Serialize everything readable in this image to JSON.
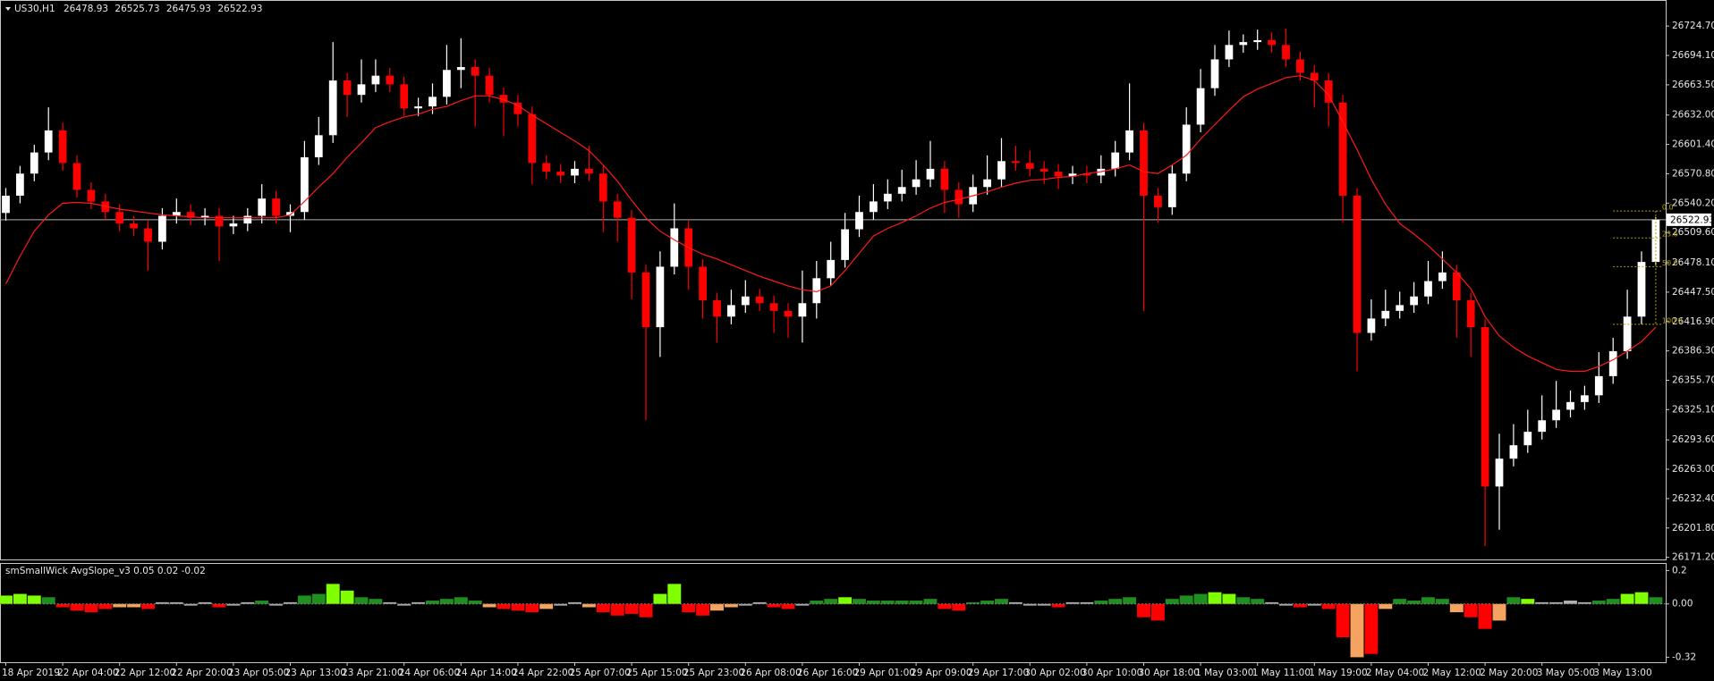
{
  "chart_data": {
    "type": "candlestick",
    "symbol": "US30,H1",
    "categories": [
      "18 Apr 2019",
      null,
      null,
      null,
      "22 Apr 04:00",
      null,
      null,
      null,
      "22 Apr 12:00",
      null,
      null,
      null,
      "22 Apr 20:00",
      null,
      null,
      null,
      "23 Apr 05:00",
      null,
      null,
      null,
      "23 Apr 13:00",
      null,
      null,
      null,
      "23 Apr 21:00",
      null,
      null,
      null,
      "24 Apr 06:00",
      null,
      null,
      null,
      "24 Apr 14:00",
      null,
      null,
      null,
      "24 Apr 22:00",
      null,
      null,
      null,
      "25 Apr 07:00",
      null,
      null,
      null,
      "25 Apr 15:00",
      null,
      null,
      null,
      "25 Apr 23:00",
      null,
      null,
      null,
      "26 Apr 08:00",
      null,
      null,
      null,
      "26 Apr 16:00",
      null,
      null,
      null,
      "29 Apr 01:00",
      null,
      null,
      null,
      "29 Apr 09:00",
      null,
      null,
      null,
      "29 Apr 17:00",
      null,
      null,
      null,
      "30 Apr 02:00",
      null,
      null,
      null,
      "30 Apr 10:00",
      null,
      null,
      null,
      "30 Apr 18:00",
      null,
      null,
      null,
      "1 May 03:00",
      null,
      null,
      null,
      "1 May 11:00",
      null,
      null,
      null,
      "1 May 19:00",
      null,
      null,
      null,
      "2 May 04:00",
      null,
      null,
      null,
      "2 May 12:00",
      null,
      null,
      null,
      "2 May 20:00",
      null,
      null,
      null,
      "3 May 05:00",
      null,
      null,
      null,
      "3 May 13:00",
      null,
      null,
      null,
      null
    ],
    "open": [
      26530,
      26548,
      26571,
      26593,
      26616,
      26582,
      26554,
      26542,
      26531,
      26519,
      26514,
      26500,
      26527,
      26531,
      26525,
      26527,
      26516,
      26519,
      26527,
      26545,
      26527,
      26531,
      26588,
      26611,
      26668,
      26653,
      26664,
      26673,
      26664,
      26639,
      26641,
      26651,
      26679,
      26682,
      26673,
      26653,
      26645,
      26633,
      26582,
      26573,
      26569,
      26576,
      26571,
      26542,
      26525,
      26468,
      26411,
      26474,
      26514,
      26474,
      26439,
      26422,
      26434,
      26443,
      26436,
      26428,
      26422,
      26436,
      26462,
      26481,
      26513,
      26531,
      26542,
      26550,
      26557,
      26565,
      26576,
      26554,
      26539,
      26557,
      26565,
      26584,
      26582,
      26576,
      26573,
      26568,
      26571,
      26569,
      26576,
      26593,
      26616,
      26548,
      26536,
      26571,
      26622,
      26660,
      26690,
      26705,
      26708,
      26710,
      26705,
      26690,
      26676,
      26668,
      26645,
      26548,
      26405,
      26420,
      26428,
      26434,
      26443,
      26459,
      26468,
      26439,
      26411,
      26245,
      26274,
      26288,
      26302,
      26314,
      26325,
      26333,
      26340,
      26360,
      26386,
      26422,
      26478.93
    ],
    "high": [
      26556,
      26579,
      26601,
      26640,
      26624,
      26590,
      26562,
      26550,
      26539,
      26527,
      26522,
      26535,
      26545,
      26539,
      26535,
      26535,
      26527,
      26535,
      26560,
      26553,
      26539,
      26605,
      26630,
      26708,
      26676,
      26690,
      26690,
      26681,
      26672,
      26650,
      26665,
      26705,
      26712,
      26690,
      26681,
      26661,
      26653,
      26641,
      26590,
      26581,
      26584,
      26600,
      26579,
      26550,
      26533,
      26476,
      26490,
      26540,
      26522,
      26482,
      26447,
      26450,
      26460,
      26451,
      26444,
      26436,
      26470,
      26480,
      26500,
      26530,
      26548,
      26560,
      26565,
      26575,
      26585,
      26605,
      26584,
      26562,
      26570,
      26590,
      26608,
      26600,
      26595,
      26584,
      26581,
      26579,
      26579,
      26590,
      26605,
      26665,
      26624,
      26556,
      26580,
      26640,
      26680,
      26705,
      26720,
      26716,
      26721,
      26718,
      26722,
      26698,
      26684,
      26676,
      26653,
      26556,
      26440,
      26450,
      26448,
      26458,
      26480,
      26490,
      26476,
      26447,
      26419,
      26300,
      26310,
      26325,
      26340,
      26355,
      26345,
      26350,
      26385,
      26400,
      26450,
      26490,
      26525.73
    ],
    "low": [
      26522,
      26540,
      26563,
      26585,
      26574,
      26546,
      26534,
      26523,
      26511,
      26506,
      26470,
      26492,
      26519,
      26517,
      26517,
      26480,
      26508,
      26511,
      26519,
      26519,
      26510,
      26523,
      26580,
      26603,
      26630,
      26645,
      26656,
      26656,
      26631,
      26631,
      26633,
      26643,
      26660,
      26620,
      26645,
      26610,
      26620,
      26560,
      26565,
      26561,
      26561,
      26563,
      26510,
      26500,
      26440,
      26314,
      26380,
      26466,
      26450,
      26420,
      26395,
      26414,
      26426,
      26428,
      26405,
      26400,
      26395,
      26420,
      26454,
      26473,
      26505,
      26523,
      26534,
      26542,
      26549,
      26557,
      26530,
      26525,
      26531,
      26549,
      26557,
      26574,
      26568,
      26560,
      26555,
      26560,
      26561,
      26561,
      26568,
      26585,
      26428,
      26520,
      26528,
      26563,
      26614,
      26652,
      26682,
      26697,
      26700,
      26697,
      26682,
      26668,
      26640,
      26620,
      26520,
      26365,
      26397,
      26412,
      26420,
      26426,
      26435,
      26451,
      26400,
      26380,
      26183,
      26200,
      26266,
      26280,
      26294,
      26306,
      26317,
      26325,
      26332,
      26352,
      26378,
      26414,
      26475.93
    ],
    "close": [
      26548,
      26571,
      26593,
      26616,
      26582,
      26554,
      26542,
      26531,
      26519,
      26514,
      26500,
      26527,
      26531,
      26525,
      26527,
      26516,
      26519,
      26527,
      26545,
      26527,
      26531,
      26588,
      26611,
      26668,
      26653,
      26664,
      26673,
      26664,
      26639,
      26641,
      26651,
      26679,
      26682,
      26673,
      26653,
      26645,
      26633,
      26582,
      26573,
      26569,
      26576,
      26571,
      26542,
      26525,
      26468,
      26411,
      26474,
      26514,
      26474,
      26439,
      26422,
      26434,
      26443,
      26436,
      26428,
      26422,
      26436,
      26462,
      26481,
      26513,
      26531,
      26542,
      26550,
      26557,
      26565,
      26576,
      26554,
      26539,
      26557,
      26565,
      26584,
      26582,
      26576,
      26573,
      26568,
      26571,
      26569,
      26576,
      26593,
      26616,
      26548,
      26536,
      26571,
      26622,
      26660,
      26690,
      26705,
      26708,
      26710,
      26705,
      26690,
      26676,
      26668,
      26645,
      26548,
      26405,
      26420,
      26428,
      26434,
      26443,
      26459,
      26468,
      26439,
      26411,
      26245,
      26274,
      26288,
      26302,
      26314,
      26325,
      26333,
      26340,
      26360,
      26386,
      26422,
      26478.93,
      26522.93
    ],
    "up_color": "#ffffff",
    "down_color": "#ff0000",
    "ma": {
      "color": "#ff1a1a",
      "values": [
        26456,
        26485,
        26511,
        26528,
        26540,
        26541,
        26540,
        26537,
        26534,
        26532,
        26530,
        26528,
        26527,
        26526,
        26525,
        26525,
        26525,
        26525,
        26525,
        26525,
        26528,
        26542,
        26557,
        26571,
        26588,
        26603,
        26619,
        26625,
        26630,
        26633,
        26638,
        26641,
        26647,
        26652,
        26652,
        26648,
        26642,
        26632,
        26623,
        26614,
        26605,
        26595,
        26580,
        26563,
        26543,
        26525,
        26511,
        26502,
        26494,
        26487,
        26482,
        26476,
        26470,
        26464,
        26459,
        26454,
        26450,
        26448,
        26454,
        26470,
        26488,
        26506,
        26514,
        26520,
        26527,
        26535,
        26541,
        26544,
        26548,
        26552,
        26557,
        26561,
        26564,
        26565,
        26567,
        26568,
        26571,
        26573,
        26576,
        26580,
        26573,
        26571,
        26580,
        26590,
        26607,
        26622,
        26637,
        26651,
        26659,
        26665,
        26671,
        26673,
        26668,
        26653,
        26625,
        26596,
        26565,
        26539,
        26519,
        26508,
        26496,
        26482,
        26468,
        26451,
        26422,
        26402,
        26390,
        26381,
        26374,
        26367,
        26365,
        26365,
        26370,
        26377,
        26386,
        26396,
        26411
      ]
    },
    "ylim": [
      26169,
      26750
    ],
    "yticks": [
      {
        "value": 26724.7,
        "label": "26724.70"
      },
      {
        "value": 26694.1,
        "label": "26694.10"
      },
      {
        "value": 26663.5,
        "label": "26663.50"
      },
      {
        "value": 26632,
        "label": "26632.00"
      },
      {
        "value": 26601.4,
        "label": "26601.40"
      },
      {
        "value": 26570.8,
        "label": "26570.80"
      },
      {
        "value": 26540.2,
        "label": "26540.20"
      },
      {
        "value": 26509.6,
        "label": "26509.60"
      },
      {
        "value": 26478.1,
        "label": "26478.10"
      },
      {
        "value": 26447.5,
        "label": "26447.50"
      },
      {
        "value": 26416.9,
        "label": "26416.90"
      },
      {
        "value": 26386.3,
        "label": "26386.30"
      },
      {
        "value": 26355.7,
        "label": "26355.70"
      },
      {
        "value": 26325.1,
        "label": "26325.10"
      },
      {
        "value": 26293.6,
        "label": "26293.60"
      },
      {
        "value": 26263,
        "label": "26263.00"
      },
      {
        "value": 26232.4,
        "label": "26232.40"
      },
      {
        "value": 26201.8,
        "label": "26201.80"
      },
      {
        "value": 26171.2,
        "label": "26171.20"
      }
    ],
    "price_line_color": "#b0b0b0",
    "fib_color": "#b8a200",
    "fib_levels": [
      {
        "label": "0.0",
        "price": 26532
      },
      {
        "label": "23.6",
        "price": 26504
      },
      {
        "label": "50.0",
        "price": 26474
      },
      {
        "label": "100.0",
        "price": 26414
      }
    ],
    "indicator": {
      "type": "histogram",
      "title": "smSmallWick AvgSlope_v3 0.05 0.02 -0.02",
      "values": [
        0.05,
        0.06,
        0.05,
        0.04,
        -0.02,
        -0.04,
        -0.05,
        -0.03,
        -0.02,
        -0.02,
        -0.03,
        0.01,
        0.01,
        -0.01,
        0.01,
        -0.02,
        -0.01,
        0.01,
        0.02,
        -0.01,
        0.01,
        0.05,
        0.06,
        0.12,
        0.08,
        0.04,
        0.03,
        0.01,
        -0.01,
        0.01,
        0.02,
        0.03,
        0.04,
        0.02,
        -0.02,
        -0.03,
        -0.04,
        -0.05,
        -0.03,
        -0.01,
        0.01,
        -0.02,
        -0.05,
        -0.07,
        -0.06,
        -0.08,
        0.06,
        0.12,
        -0.05,
        -0.07,
        -0.04,
        -0.02,
        -0.01,
        0.01,
        -0.02,
        -0.03,
        -0.01,
        0.02,
        0.03,
        0.04,
        0.03,
        0.02,
        0.02,
        0.02,
        0.02,
        0.03,
        -0.03,
        -0.04,
        0.01,
        0.02,
        0.03,
        0.01,
        -0.01,
        -0.01,
        -0.02,
        0.01,
        0.01,
        0.02,
        0.03,
        0.04,
        -0.08,
        -0.1,
        0.03,
        0.05,
        0.06,
        0.07,
        0.06,
        0.04,
        0.03,
        0.01,
        -0.01,
        -0.02,
        -0.01,
        -0.03,
        -0.2,
        -0.32,
        -0.3,
        -0.03,
        0.03,
        0.02,
        0.04,
        0.03,
        -0.05,
        -0.08,
        -0.15,
        -0.1,
        0.04,
        0.03,
        0.01,
        0.01,
        0.02,
        0.01,
        0.02,
        0.03,
        0.06,
        0.07,
        0.04
      ],
      "colors": [
        "#7fff00",
        "#7fff00",
        "#7fff00",
        "#1f8f1f",
        "#ff0000",
        "#ff0000",
        "#ff0000",
        "#ff0000",
        "#f4a460",
        "#f4a460",
        "#ff0000",
        "#b0b0b0",
        "#b0b0b0",
        "#b0b0b0",
        "#b0b0b0",
        "#ff0000",
        "#b0b0b0",
        "#b0b0b0",
        "#1f8f1f",
        "#b0b0b0",
        "#b0b0b0",
        "#1f8f1f",
        "#1f8f1f",
        "#7fff00",
        "#7fff00",
        "#1f8f1f",
        "#1f8f1f",
        "#b0b0b0",
        "#b0b0b0",
        "#b0b0b0",
        "#1f8f1f",
        "#1f8f1f",
        "#1f8f1f",
        "#1f8f1f",
        "#f4a460",
        "#ff0000",
        "#ff0000",
        "#ff0000",
        "#f4a460",
        "#b0b0b0",
        "#b0b0b0",
        "#f4a460",
        "#ff0000",
        "#ff0000",
        "#ff0000",
        "#ff0000",
        "#7fff00",
        "#7fff00",
        "#ff0000",
        "#ff0000",
        "#f4a460",
        "#f4a460",
        "#b0b0b0",
        "#b0b0b0",
        "#ff0000",
        "#ff0000",
        "#b0b0b0",
        "#1f8f1f",
        "#1f8f1f",
        "#7fff00",
        "#1f8f1f",
        "#1f8f1f",
        "#1f8f1f",
        "#1f8f1f",
        "#1f8f1f",
        "#1f8f1f",
        "#ff0000",
        "#ff0000",
        "#1f8f1f",
        "#1f8f1f",
        "#1f8f1f",
        "#b0b0b0",
        "#b0b0b0",
        "#b0b0b0",
        "#ff0000",
        "#b0b0b0",
        "#b0b0b0",
        "#1f8f1f",
        "#1f8f1f",
        "#1f8f1f",
        "#ff0000",
        "#ff0000",
        "#1f8f1f",
        "#1f8f1f",
        "#1f8f1f",
        "#7fff00",
        "#7fff00",
        "#1f8f1f",
        "#1f8f1f",
        "#b0b0b0",
        "#b0b0b0",
        "#ff0000",
        "#b0b0b0",
        "#ff0000",
        "#ff0000",
        "#f4a460",
        "#ff0000",
        "#f4a460",
        "#1f8f1f",
        "#1f8f1f",
        "#1f8f1f",
        "#1f8f1f",
        "#f4a460",
        "#ff0000",
        "#ff0000",
        "#f4a460",
        "#1f8f1f",
        "#7fff00",
        "#b0b0b0",
        "#b0b0b0",
        "#b0b0b0",
        "#b0b0b0",
        "#1f8f1f",
        "#1f8f1f",
        "#7fff00",
        "#7fff00",
        "#1f8f1f"
      ],
      "ylim": [
        -0.35,
        0.24
      ],
      "yticks": [
        0.2,
        {
          "value": 0,
          "label": "0.00"
        },
        -0.32
      ]
    }
  }
}
